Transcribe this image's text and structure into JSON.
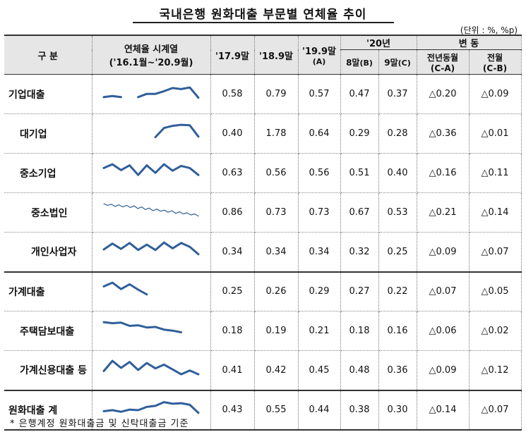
{
  "title": "국내은행 원화대출 부문별 연체율 추이",
  "unit": "(단위 : %, %p)",
  "header": {
    "category": "구  분",
    "series_line1": "연체율 시계열",
    "series_line2": "('16.1월~'20.9월)",
    "col_17": "'17.9말",
    "col_18": "'18.9말",
    "col_19_line1": "'19.9말",
    "col_19_line2": "(A)",
    "group_20": "'20년",
    "col_aug": "8말",
    "col_aug_tag": "(B)",
    "col_sep": "9말",
    "col_sep_tag": "(C)",
    "group_change": "변  동",
    "col_yoy_line1": "전년동월",
    "col_yoy_line2": "(C-A)",
    "col_mom_line1": "전월",
    "col_mom_line2": "(C-B)"
  },
  "rows": [
    {
      "name": "기업대출",
      "v17": "0.58",
      "v18": "0.79",
      "v19": "0.57",
      "aug": "0.47",
      "sep": "0.37",
      "yoy": "△0.20",
      "mom": "△0.09",
      "spark": [
        0.4,
        0.44,
        0.4,
        null,
        0.4,
        0.52,
        0.52,
        0.62,
        0.74,
        0.7,
        0.76,
        0.38
      ]
    },
    {
      "name": "대기업",
      "v17": "0.40",
      "v18": "1.78",
      "v19": "0.64",
      "aug": "0.29",
      "sep": "0.28",
      "yoy": "△0.36",
      "mom": "△0.01",
      "spark": [
        null,
        null,
        null,
        null,
        null,
        null,
        0.38,
        0.72,
        0.8,
        0.84,
        0.82,
        0.4
      ]
    },
    {
      "name": "중소기업",
      "v17": "0.63",
      "v18": "0.56",
      "v19": "0.56",
      "aug": "0.51",
      "sep": "0.40",
      "yoy": "△0.16",
      "mom": "△0.11",
      "spark": [
        0.7,
        0.84,
        0.62,
        0.8,
        0.44,
        0.8,
        0.52,
        0.84,
        0.6,
        0.78,
        0.7,
        0.44
      ]
    },
    {
      "name": "중소법인",
      "v17": "0.86",
      "v18": "0.73",
      "v19": "0.73",
      "aug": "0.67",
      "sep": "0.53",
      "yoy": "△0.21",
      "mom": "△0.14",
      "spark": [
        0.84,
        0.78,
        0.82,
        0.74,
        0.8,
        0.72,
        0.78,
        0.7,
        0.76,
        0.66,
        0.72,
        0.62,
        0.68,
        0.58,
        0.64,
        0.56,
        0.6,
        0.52,
        0.58,
        0.48,
        0.54,
        0.46,
        0.5,
        0.42,
        0.46,
        0.38
      ]
    },
    {
      "name": "개인사업자",
      "v17": "0.34",
      "v18": "0.34",
      "v19": "0.34",
      "aug": "0.32",
      "sep": "0.25",
      "yoy": "△0.09",
      "mom": "△0.07",
      "spark": [
        0.58,
        0.8,
        0.6,
        0.82,
        0.56,
        0.76,
        0.56,
        0.84,
        0.62,
        0.82,
        0.68,
        0.4
      ]
    },
    {
      "name": "가계대출",
      "v17": "0.25",
      "v18": "0.26",
      "v19": "0.29",
      "aug": "0.27",
      "sep": "0.22",
      "yoy": "△0.07",
      "mom": "△0.05",
      "spark": [
        0.7,
        0.84,
        0.6,
        0.78,
        0.58,
        0.4,
        null,
        null,
        null,
        null,
        null,
        null
      ]
    },
    {
      "name": "주택담보대출",
      "v17": "0.18",
      "v18": "0.19",
      "v19": "0.21",
      "aug": "0.18",
      "sep": "0.16",
      "yoy": "△0.06",
      "mom": "△0.02",
      "spark": [
        0.84,
        0.8,
        0.82,
        0.7,
        0.72,
        0.64,
        0.66,
        0.56,
        0.52,
        0.46,
        null,
        null
      ]
    },
    {
      "name": "가계신용대출 등",
      "v17": "0.41",
      "v18": "0.42",
      "v19": "0.45",
      "aug": "0.48",
      "sep": "0.36",
      "yoy": "△0.09",
      "mom": "△0.12",
      "spark": [
        0.46,
        0.84,
        0.58,
        0.8,
        0.5,
        0.76,
        0.56,
        0.7,
        0.52,
        0.34,
        0.48,
        0.34
      ]
    },
    {
      "name": "원화대출 계",
      "v17": "0.43",
      "v18": "0.55",
      "v19": "0.44",
      "aug": "0.38",
      "sep": "0.30",
      "yoy": "△0.14",
      "mom": "△0.07",
      "spark": [
        0.46,
        0.5,
        0.44,
        0.52,
        0.5,
        0.62,
        0.66,
        0.8,
        0.74,
        0.76,
        0.7,
        0.4
      ]
    }
  ],
  "footnote": "* 은행계정 원화대출금 및 신탁대출금 기준",
  "colors": {
    "spark": "#2f5f9a",
    "header_bg": "#e6e6e6"
  }
}
